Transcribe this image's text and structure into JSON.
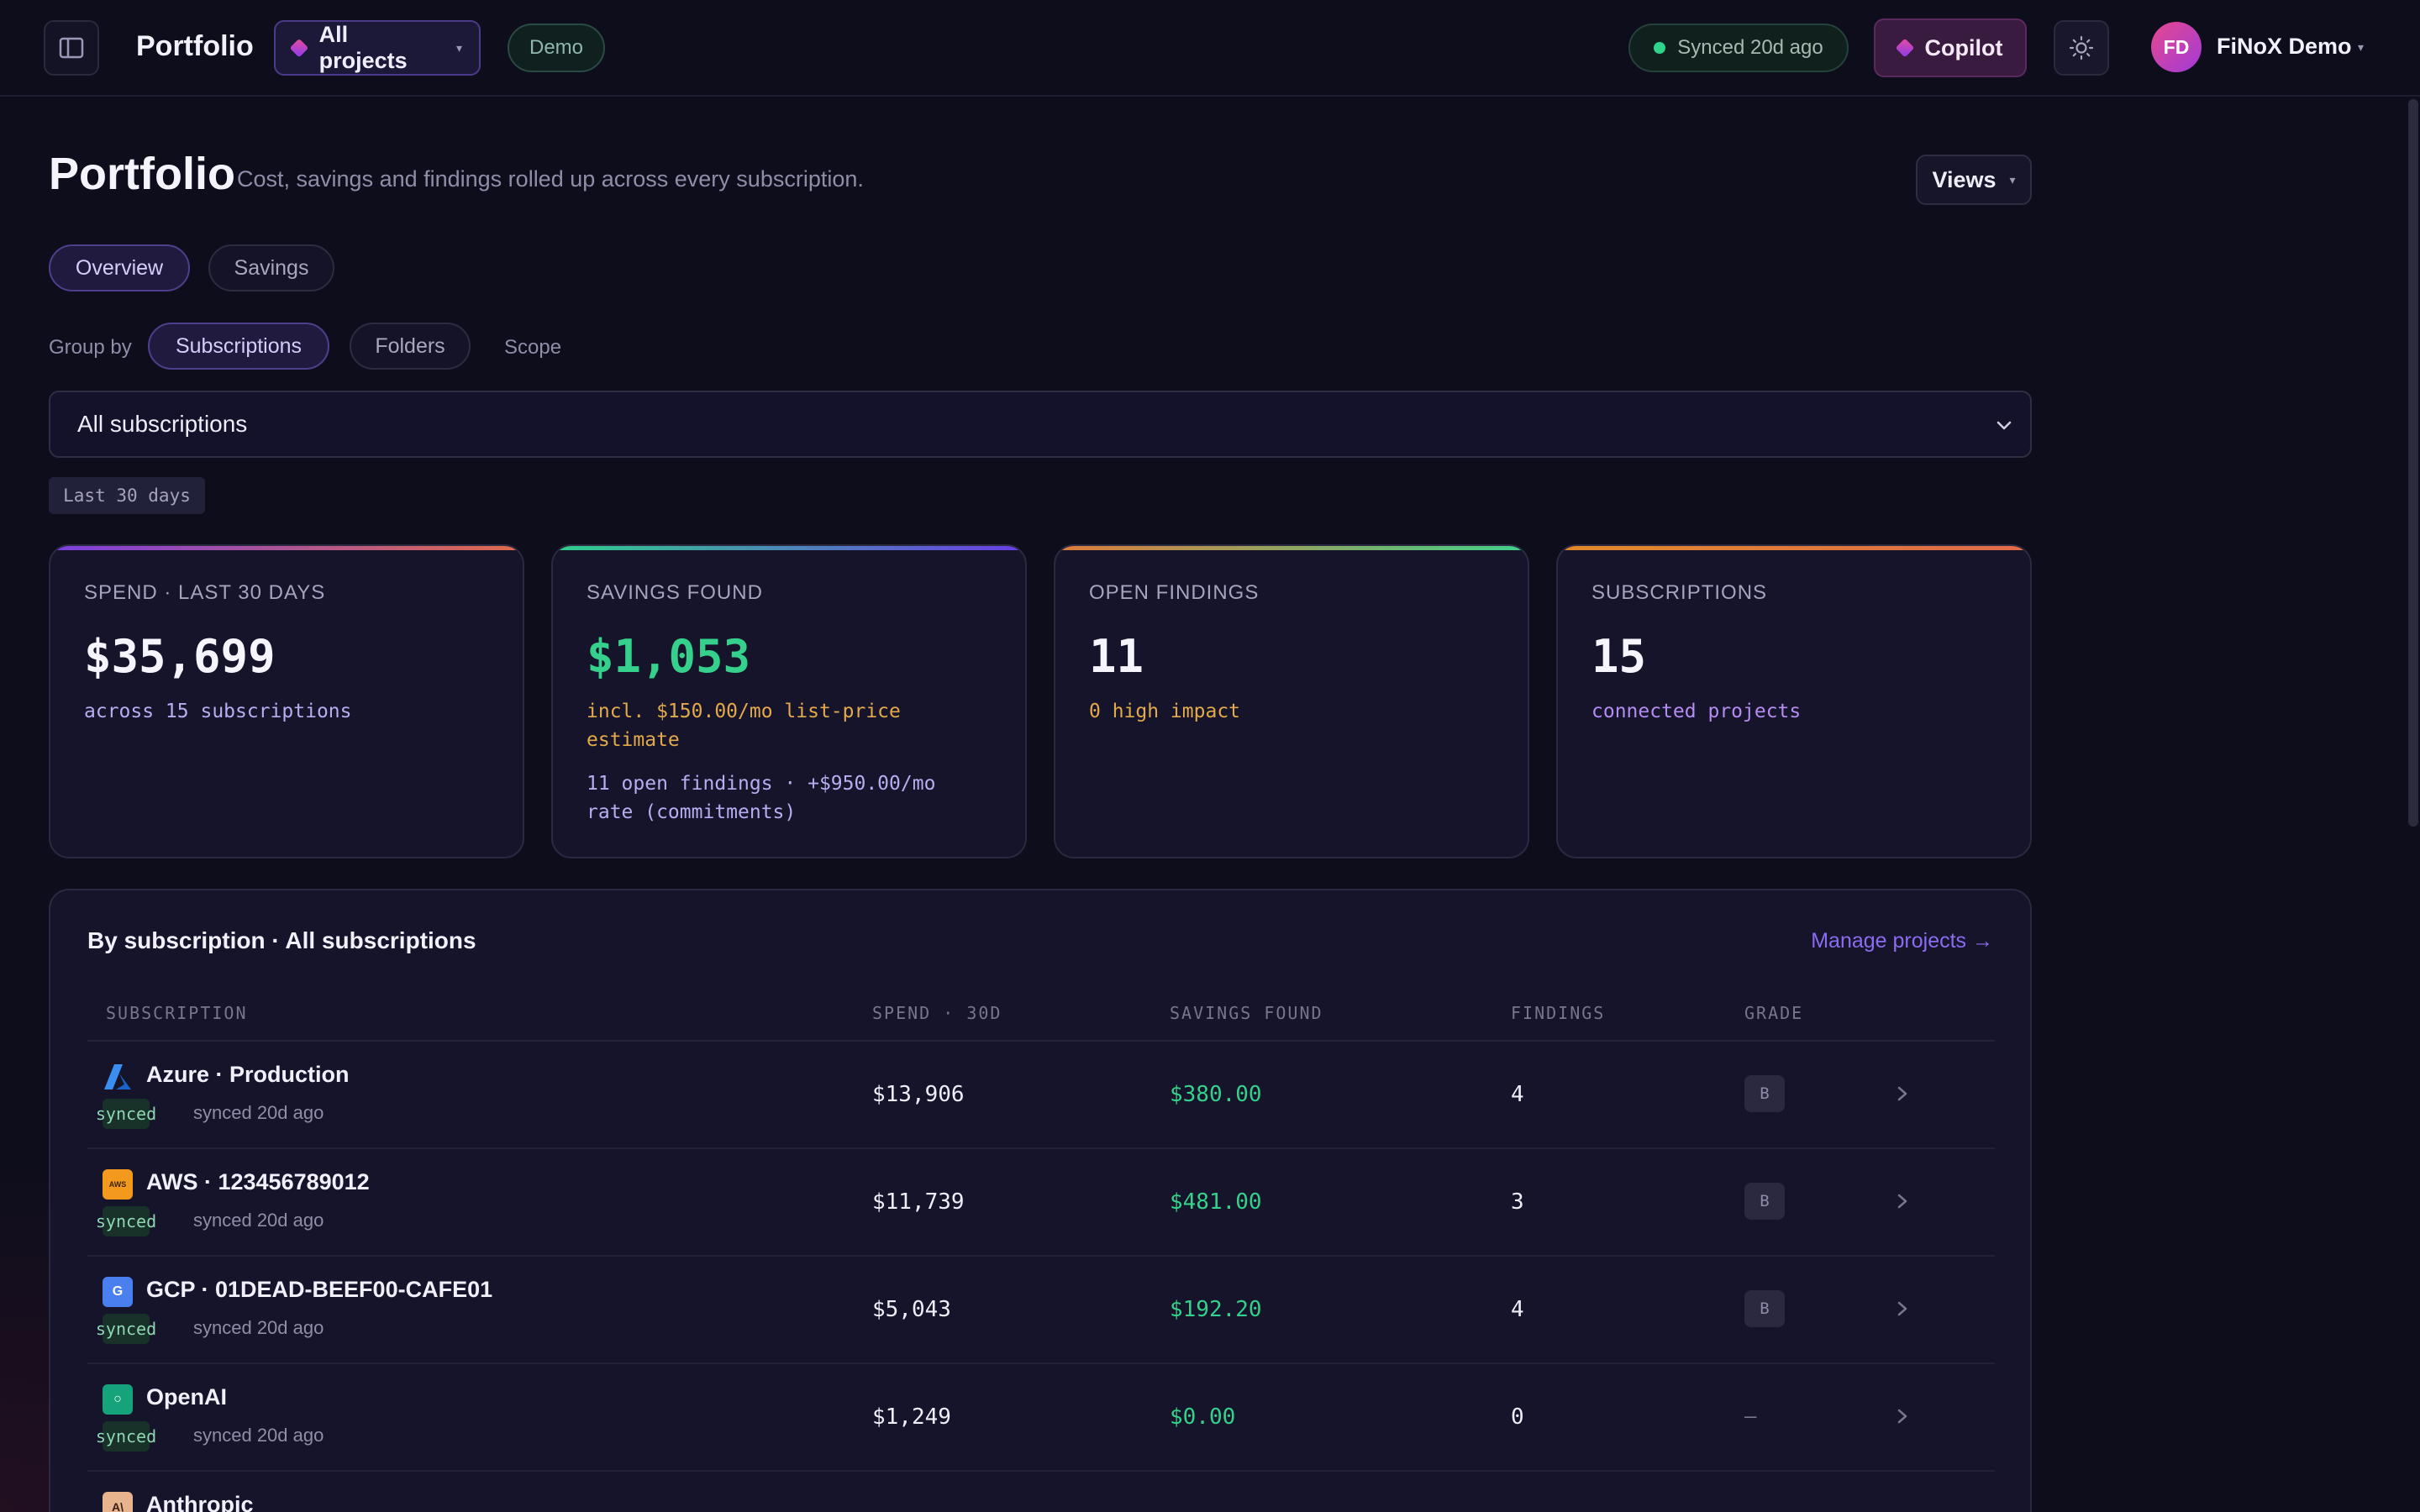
{
  "topbar": {
    "title": "Portfolio",
    "project_selector": "All projects",
    "demo_badge": "Demo",
    "sync_status": "Synced 20d ago",
    "copilot_label": "Copilot",
    "avatar_initials": "FD",
    "user_name": "FiNoX Demo"
  },
  "header": {
    "title": "Portfolio",
    "subtitle": "Cost, savings and findings rolled up across every subscription.",
    "views_label": "Views"
  },
  "tabs": [
    {
      "label": "Overview",
      "active": true
    },
    {
      "label": "Savings",
      "active": false
    }
  ],
  "group_by": {
    "label": "Group by",
    "options": [
      {
        "label": "Subscriptions",
        "active": true
      },
      {
        "label": "Folders",
        "active": false
      }
    ],
    "scope_label": "Scope"
  },
  "subscription_select": {
    "value": "All subscriptions"
  },
  "date_range": "Last 30 days",
  "stats": [
    {
      "label": "SPEND · LAST 30 DAYS",
      "value": "$35,699",
      "notes": [
        "across 15 subscriptions"
      ]
    },
    {
      "label": "SAVINGS FOUND",
      "value": "$1,053",
      "notes": [
        "incl. $150.00/mo list-price estimate",
        "11 open findings · +$950.00/mo rate (commitments)"
      ]
    },
    {
      "label": "OPEN FINDINGS",
      "value": "11",
      "notes": [
        "0 high impact"
      ]
    },
    {
      "label": "SUBSCRIPTIONS",
      "value": "15",
      "notes": [
        "connected projects"
      ]
    }
  ],
  "table": {
    "title": "By subscription · All subscriptions",
    "manage_link": "Manage projects →",
    "columns": [
      "SUBSCRIPTION",
      "SPEND · 30D",
      "SAVINGS FOUND",
      "FINDINGS",
      "GRADE"
    ],
    "rows": [
      {
        "name": "Azure · Production",
        "icon": "azure-icon",
        "icon_glyph": "",
        "status": "synced",
        "synced_time": "synced 20d ago",
        "spend": "$13,906",
        "savings": "$380.00",
        "findings": "4",
        "grade": "B"
      },
      {
        "name": "AWS · 123456789012",
        "icon": "aws-icon",
        "icon_glyph": "AWS",
        "status": "synced",
        "synced_time": "synced 20d ago",
        "spend": "$11,739",
        "savings": "$481.00",
        "findings": "3",
        "grade": "B"
      },
      {
        "name": "GCP · 01DEAD-BEEF00-CAFE01",
        "icon": "gcp-icon",
        "icon_glyph": "G",
        "status": "synced",
        "synced_time": "synced 20d ago",
        "spend": "$5,043",
        "savings": "$192.20",
        "findings": "4",
        "grade": "B"
      },
      {
        "name": "OpenAI",
        "icon": "openai-icon",
        "icon_glyph": "○",
        "status": "synced",
        "synced_time": "synced 20d ago",
        "spend": "$1,249",
        "savings": "$0.00",
        "findings": "0",
        "grade": "—"
      },
      {
        "name": "Anthropic",
        "icon": "anthropic-icon",
        "icon_glyph": "A\\",
        "status": "",
        "synced_time": "",
        "spend": "",
        "savings": "",
        "findings": "",
        "grade": ""
      }
    ]
  },
  "colors": {
    "accent_purple": "#8b6cf0",
    "success_green": "#35d08b",
    "warning_amber": "#e3a94a",
    "muted_lavender": "#b8adf0"
  }
}
